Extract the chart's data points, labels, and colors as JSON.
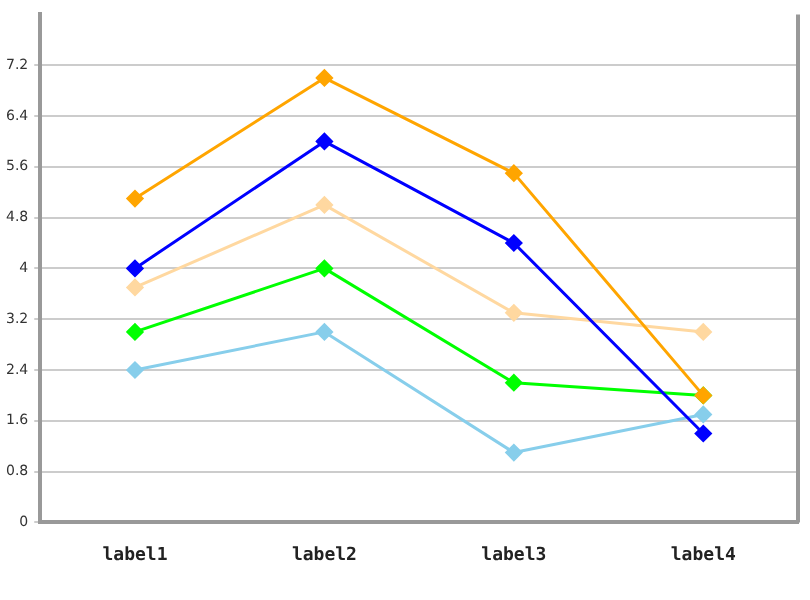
{
  "chart_data": {
    "type": "line",
    "categories": [
      "label1",
      "label2",
      "label3",
      "label4"
    ],
    "series": [
      {
        "color": "#ffa500",
        "values": [
          5.1,
          7.0,
          5.5,
          2.0
        ]
      },
      {
        "color": "#0000ff",
        "values": [
          4.0,
          6.0,
          4.4,
          1.4
        ]
      },
      {
        "color": "#ffd8a0",
        "values": [
          3.7,
          5.0,
          3.3,
          3.0
        ]
      },
      {
        "color": "#00ff00",
        "values": [
          3.0,
          4.0,
          2.2,
          2.0
        ]
      },
      {
        "color": "#87ceeb",
        "values": [
          2.4,
          3.0,
          1.1,
          1.7
        ]
      }
    ],
    "ylim": [
      0,
      8
    ],
    "yticks": [
      0,
      0.8,
      1.6,
      2.4,
      3.2,
      4,
      4.8,
      5.6,
      6.4,
      7.2
    ],
    "grid": "y",
    "legend": false,
    "marker": "diamond",
    "line_style": "solid"
  }
}
